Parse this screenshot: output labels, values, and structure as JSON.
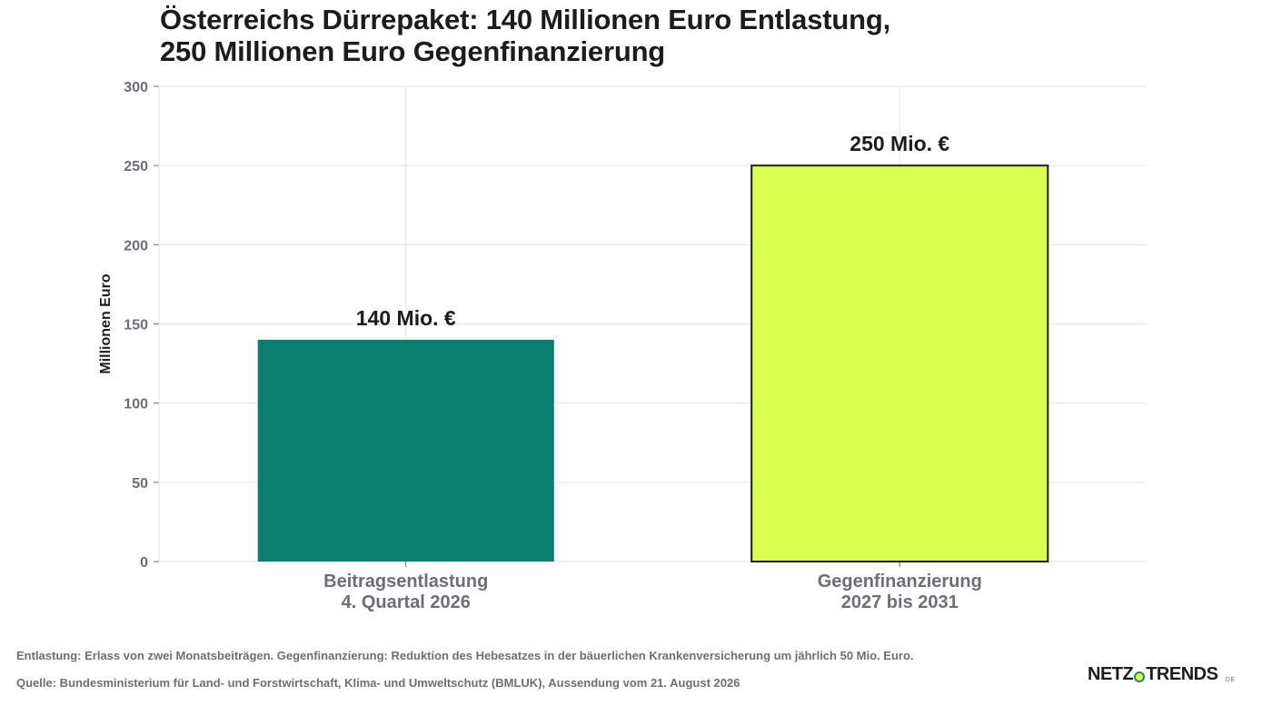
{
  "chart_data": {
    "type": "bar",
    "title": [
      "Österreichs Dürrepaket: 140 Millionen Euro Entlastung,",
      "250 Millionen Euro Gegenfinanzierung"
    ],
    "ylabel": "Millionen Euro",
    "xlabel": "",
    "ylim": [
      0,
      300
    ],
    "yticks": [
      0,
      50,
      100,
      150,
      200,
      250,
      300
    ],
    "grid": true,
    "categories": [
      [
        "Beitragsentlastung",
        "4. Quartal 2026"
      ],
      [
        "Gegenfinanzierung",
        "2027 bis 2031"
      ]
    ],
    "values": [
      140,
      250
    ],
    "data_labels": [
      "140 Mio. €",
      "250 Mio. €"
    ],
    "colors": [
      "#0a7f6f",
      "#dcff4f"
    ]
  },
  "footnote": "Entlastung: Erlass von zwei Monatsbeiträgen. Gegenfinanzierung: Reduktion des Hebesatzes in der bäuerlichen Krankenversicherung um jährlich 50 Mio. Euro.",
  "source": "Quelle: Bundesministerium für Land- und Forstwirtschaft, Klima- und Umweltschutz (BMLUK), Aussendung vom 21. August 2026",
  "logo": {
    "part1": "NETZ",
    "part2": "TRENDS",
    "tld": ".DE"
  }
}
